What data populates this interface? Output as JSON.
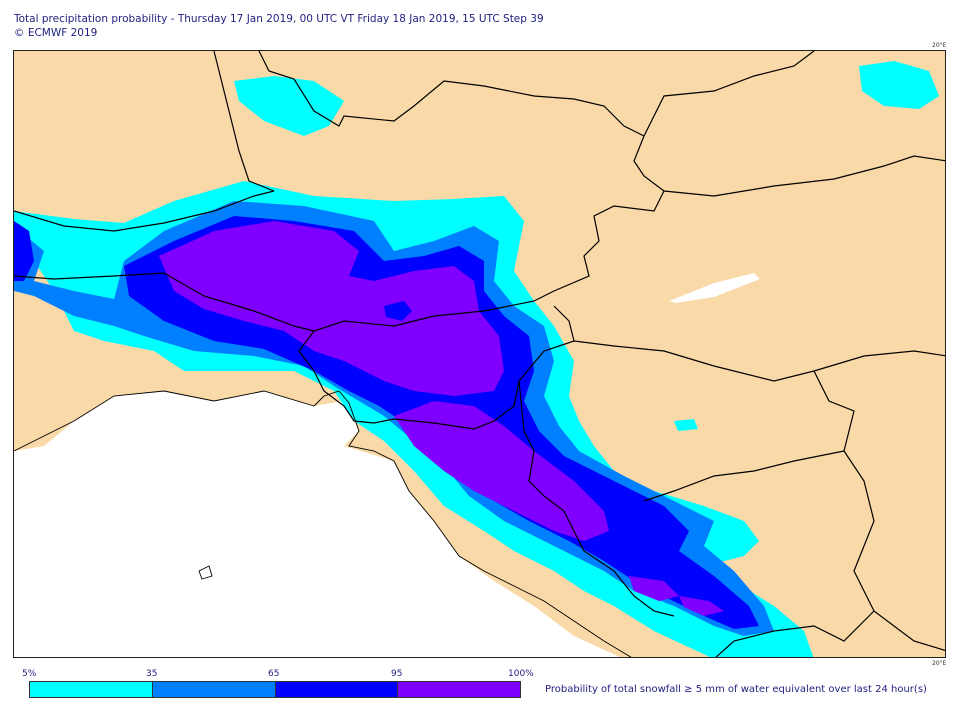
{
  "header": {
    "title": "Total precipitation probability - Thursday 17 Jan 2019, 00 UTC VT Friday 18 Jan 2019, 15 UTC Step 39",
    "copyright": "© ECMWF 2019"
  },
  "map": {
    "lon_label_top": "20°E",
    "lon_label_bottom": "20°E",
    "colors": {
      "land": "#f9d9a7",
      "sea": "#ffffff",
      "border": "#000000"
    }
  },
  "legend": {
    "ticks": [
      "5%",
      "35",
      "65",
      "95",
      "100%"
    ],
    "bins": [
      {
        "range": "5-35",
        "color": "#00ffff"
      },
      {
        "range": "35-65",
        "color": "#0080ff"
      },
      {
        "range": "65-95",
        "color": "#0000ff"
      },
      {
        "range": "95-100",
        "color": "#8000ff"
      }
    ],
    "caption": "Probability of total snowfall ≥ 5 mm of water equivalent over last 24 hour(s)"
  }
}
